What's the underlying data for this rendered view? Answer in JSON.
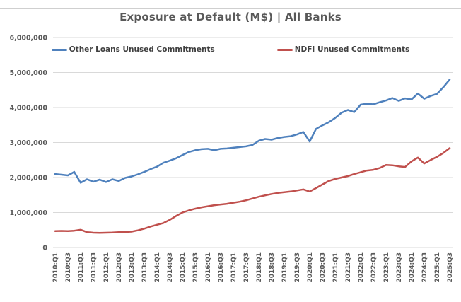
{
  "header": {
    "title": "Exposure at Default (M$) | All Banks"
  },
  "legend": {
    "items": [
      {
        "label": "Other Loans Unused Commitments",
        "color": "#4F81BD"
      },
      {
        "label": "NDFI Unused Commitments",
        "color": "#C0504D"
      }
    ]
  },
  "colors": {
    "series_blue": "#4F81BD",
    "series_red": "#C0504D",
    "gridline": "#D9D9D9",
    "axis_text": "#595959",
    "title_text": "#595959"
  },
  "chart_data": {
    "type": "line",
    "title": "Exposure at Default (M$) | All Banks",
    "xlabel": "",
    "ylabel": "",
    "ylim": [
      0,
      6000000
    ],
    "grid": "horizontal",
    "legend_position": "top",
    "x_ticks_every": 2,
    "y_tick_values": [
      0,
      1000000,
      2000000,
      3000000,
      4000000,
      5000000,
      6000000
    ],
    "y_tick_labels": [
      "0",
      "1,000,000",
      "2,000,000",
      "3,000,000",
      "4,000,000",
      "5,000,000",
      "6,000,000"
    ],
    "categories": [
      "2010:Q1",
      "2010:Q2",
      "2010:Q3",
      "2010:Q4",
      "2011:Q1",
      "2011:Q2",
      "2011:Q3",
      "2011:Q4",
      "2012:Q1",
      "2012:Q2",
      "2012:Q3",
      "2012:Q4",
      "2013:Q1",
      "2013:Q2",
      "2013:Q3",
      "2013:Q4",
      "2014:Q1",
      "2014:Q2",
      "2014:Q3",
      "2014:Q4",
      "2015:Q1",
      "2015:Q2",
      "2015:Q3",
      "2015:Q4",
      "2016:Q1",
      "2016:Q2",
      "2016:Q3",
      "2016:Q4",
      "2017:Q1",
      "2017:Q2",
      "2017:Q3",
      "2017:Q4",
      "2018:Q1",
      "2018:Q2",
      "2018:Q3",
      "2018:Q4",
      "2019:Q1",
      "2019:Q2",
      "2019:Q3",
      "2019:Q4",
      "2020:Q1",
      "2020:Q2",
      "2020:Q3",
      "2020:Q4",
      "2021:Q1",
      "2021:Q2",
      "2021:Q3",
      "2021:Q4",
      "2022:Q1",
      "2022:Q2",
      "2022:Q3",
      "2022:Q4",
      "2023:Q1",
      "2023:Q2",
      "2023:Q3",
      "2023:Q4",
      "2024:Q1",
      "2024:Q2",
      "2024:Q3",
      "2024:Q4",
      "2025:Q1",
      "2025:Q2",
      "2025:Q3"
    ],
    "series": [
      {
        "name": "Other Loans Unused Commitments",
        "color": "#4F81BD",
        "values": [
          2100000,
          2080000,
          2060000,
          2160000,
          1850000,
          1950000,
          1880000,
          1940000,
          1870000,
          1950000,
          1900000,
          1990000,
          2030000,
          2090000,
          2160000,
          2240000,
          2310000,
          2420000,
          2480000,
          2550000,
          2640000,
          2730000,
          2780000,
          2810000,
          2820000,
          2780000,
          2820000,
          2830000,
          2850000,
          2870000,
          2890000,
          2930000,
          3050000,
          3100000,
          3080000,
          3130000,
          3160000,
          3180000,
          3230000,
          3300000,
          3030000,
          3390000,
          3490000,
          3580000,
          3700000,
          3850000,
          3930000,
          3870000,
          4080000,
          4110000,
          4090000,
          4150000,
          4200000,
          4270000,
          4190000,
          4260000,
          4230000,
          4400000,
          4250000,
          4330000,
          4390000,
          4580000,
          4800000
        ]
      },
      {
        "name": "NDFI Unused Commitments",
        "color": "#C0504D",
        "values": [
          470000,
          475000,
          470000,
          480000,
          510000,
          440000,
          425000,
          420000,
          425000,
          430000,
          440000,
          445000,
          455000,
          490000,
          540000,
          600000,
          650000,
          700000,
          790000,
          900000,
          1000000,
          1060000,
          1110000,
          1150000,
          1180000,
          1210000,
          1230000,
          1250000,
          1280000,
          1310000,
          1350000,
          1400000,
          1450000,
          1490000,
          1530000,
          1560000,
          1580000,
          1600000,
          1630000,
          1660000,
          1600000,
          1700000,
          1800000,
          1900000,
          1960000,
          2000000,
          2040000,
          2100000,
          2150000,
          2200000,
          2220000,
          2270000,
          2360000,
          2350000,
          2320000,
          2300000,
          2460000,
          2570000,
          2400000,
          2500000,
          2590000,
          2700000,
          2840000
        ]
      }
    ]
  }
}
